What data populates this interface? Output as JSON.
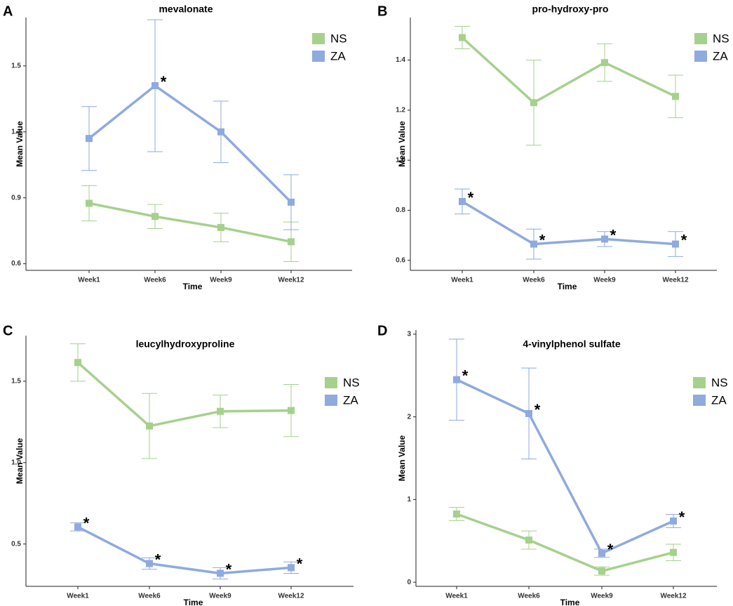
{
  "colors": {
    "NS": "#a5d18c",
    "ZA": "#8eaadf",
    "axis": "#222222"
  },
  "chart_data": [
    {
      "panel": "A",
      "type": "line",
      "title": "mevalonate",
      "xlabel": "Time",
      "ylabel": "Mean Value",
      "categories": [
        "Week1",
        "Week6",
        "Week9",
        "Week12"
      ],
      "ylim": [
        0.57,
        1.72
      ],
      "yticks": [
        0.6,
        0.9,
        1.2,
        1.5
      ],
      "ytick_labels": [
        "0.6",
        "0.9",
        "1.2",
        "1.5"
      ],
      "legend": {
        "position": "top-right",
        "entries": [
          "NS",
          "ZA"
        ]
      },
      "series": [
        {
          "name": "NS",
          "values": [
            0.875,
            0.815,
            0.765,
            0.7
          ],
          "err": [
            0.08,
            0.055,
            0.065,
            0.09
          ],
          "stars": [
            false,
            false,
            false,
            false
          ]
        },
        {
          "name": "ZA",
          "values": [
            1.17,
            1.41,
            1.2,
            0.88
          ],
          "err": [
            0.145,
            0.3,
            0.14,
            0.125
          ],
          "stars": [
            false,
            true,
            false,
            false
          ]
        }
      ]
    },
    {
      "panel": "B",
      "type": "line",
      "title": "pro-hydroxy-pro",
      "xlabel": "Time",
      "ylabel": "Mean Value",
      "categories": [
        "Week1",
        "Week6",
        "Week9",
        "Week12"
      ],
      "ylim": [
        0.56,
        1.57
      ],
      "yticks": [
        0.6,
        0.8,
        1.0,
        1.2,
        1.4
      ],
      "ytick_labels": [
        "0.6",
        "0.8",
        "1.0",
        "1.2",
        "1.4"
      ],
      "legend": {
        "position": "top-right",
        "entries": [
          "NS",
          "ZA"
        ]
      },
      "series": [
        {
          "name": "NS",
          "values": [
            1.49,
            1.23,
            1.39,
            1.255
          ],
          "err": [
            0.045,
            0.17,
            0.075,
            0.085
          ],
          "stars": [
            false,
            false,
            false,
            false
          ]
        },
        {
          "name": "ZA",
          "values": [
            0.835,
            0.665,
            0.685,
            0.665
          ],
          "err": [
            0.05,
            0.06,
            0.03,
            0.05
          ],
          "stars": [
            true,
            true,
            true,
            true
          ]
        }
      ]
    },
    {
      "panel": "C",
      "type": "line",
      "title": "leucylhydroxyproline",
      "xlabel": "Time",
      "ylabel": "Mean Value",
      "categories": [
        "Week1",
        "Week6",
        "Week9",
        "Week12"
      ],
      "ylim": [
        0.24,
        1.78
      ],
      "yticks": [
        0.5,
        1.0,
        1.5
      ],
      "ytick_labels": [
        "0.5",
        "1.0",
        "1.5"
      ],
      "legend": {
        "position": "right",
        "entries": [
          "NS",
          "ZA"
        ]
      },
      "series": [
        {
          "name": "NS",
          "values": [
            1.615,
            1.225,
            1.315,
            1.32
          ],
          "err": [
            0.115,
            0.2,
            0.1,
            0.16
          ],
          "stars": [
            false,
            false,
            false,
            false
          ]
        },
        {
          "name": "ZA",
          "values": [
            0.605,
            0.38,
            0.32,
            0.355
          ],
          "err": [
            0.025,
            0.035,
            0.035,
            0.035
          ],
          "stars": [
            true,
            true,
            true,
            true
          ]
        }
      ]
    },
    {
      "panel": "D",
      "type": "line",
      "title": "4-vinylphenol sulfate",
      "xlabel": "Time",
      "ylabel": "Mean Value",
      "categories": [
        "Week1",
        "Week6",
        "Week9",
        "Week12"
      ],
      "ylim": [
        -0.05,
        3.05
      ],
      "yticks": [
        0,
        1,
        2,
        3
      ],
      "ytick_labels": [
        "0",
        "1",
        "2",
        "3"
      ],
      "legend": {
        "position": "right",
        "entries": [
          "NS",
          "ZA"
        ]
      },
      "series": [
        {
          "name": "NS",
          "values": [
            0.825,
            0.51,
            0.135,
            0.36
          ],
          "err": [
            0.08,
            0.11,
            0.05,
            0.1
          ],
          "stars": [
            false,
            false,
            false,
            false
          ]
        },
        {
          "name": "ZA",
          "values": [
            2.45,
            2.04,
            0.35,
            0.74
          ],
          "err": [
            0.49,
            0.55,
            0.05,
            0.08
          ],
          "stars": [
            true,
            true,
            true,
            true
          ]
        }
      ]
    }
  ]
}
